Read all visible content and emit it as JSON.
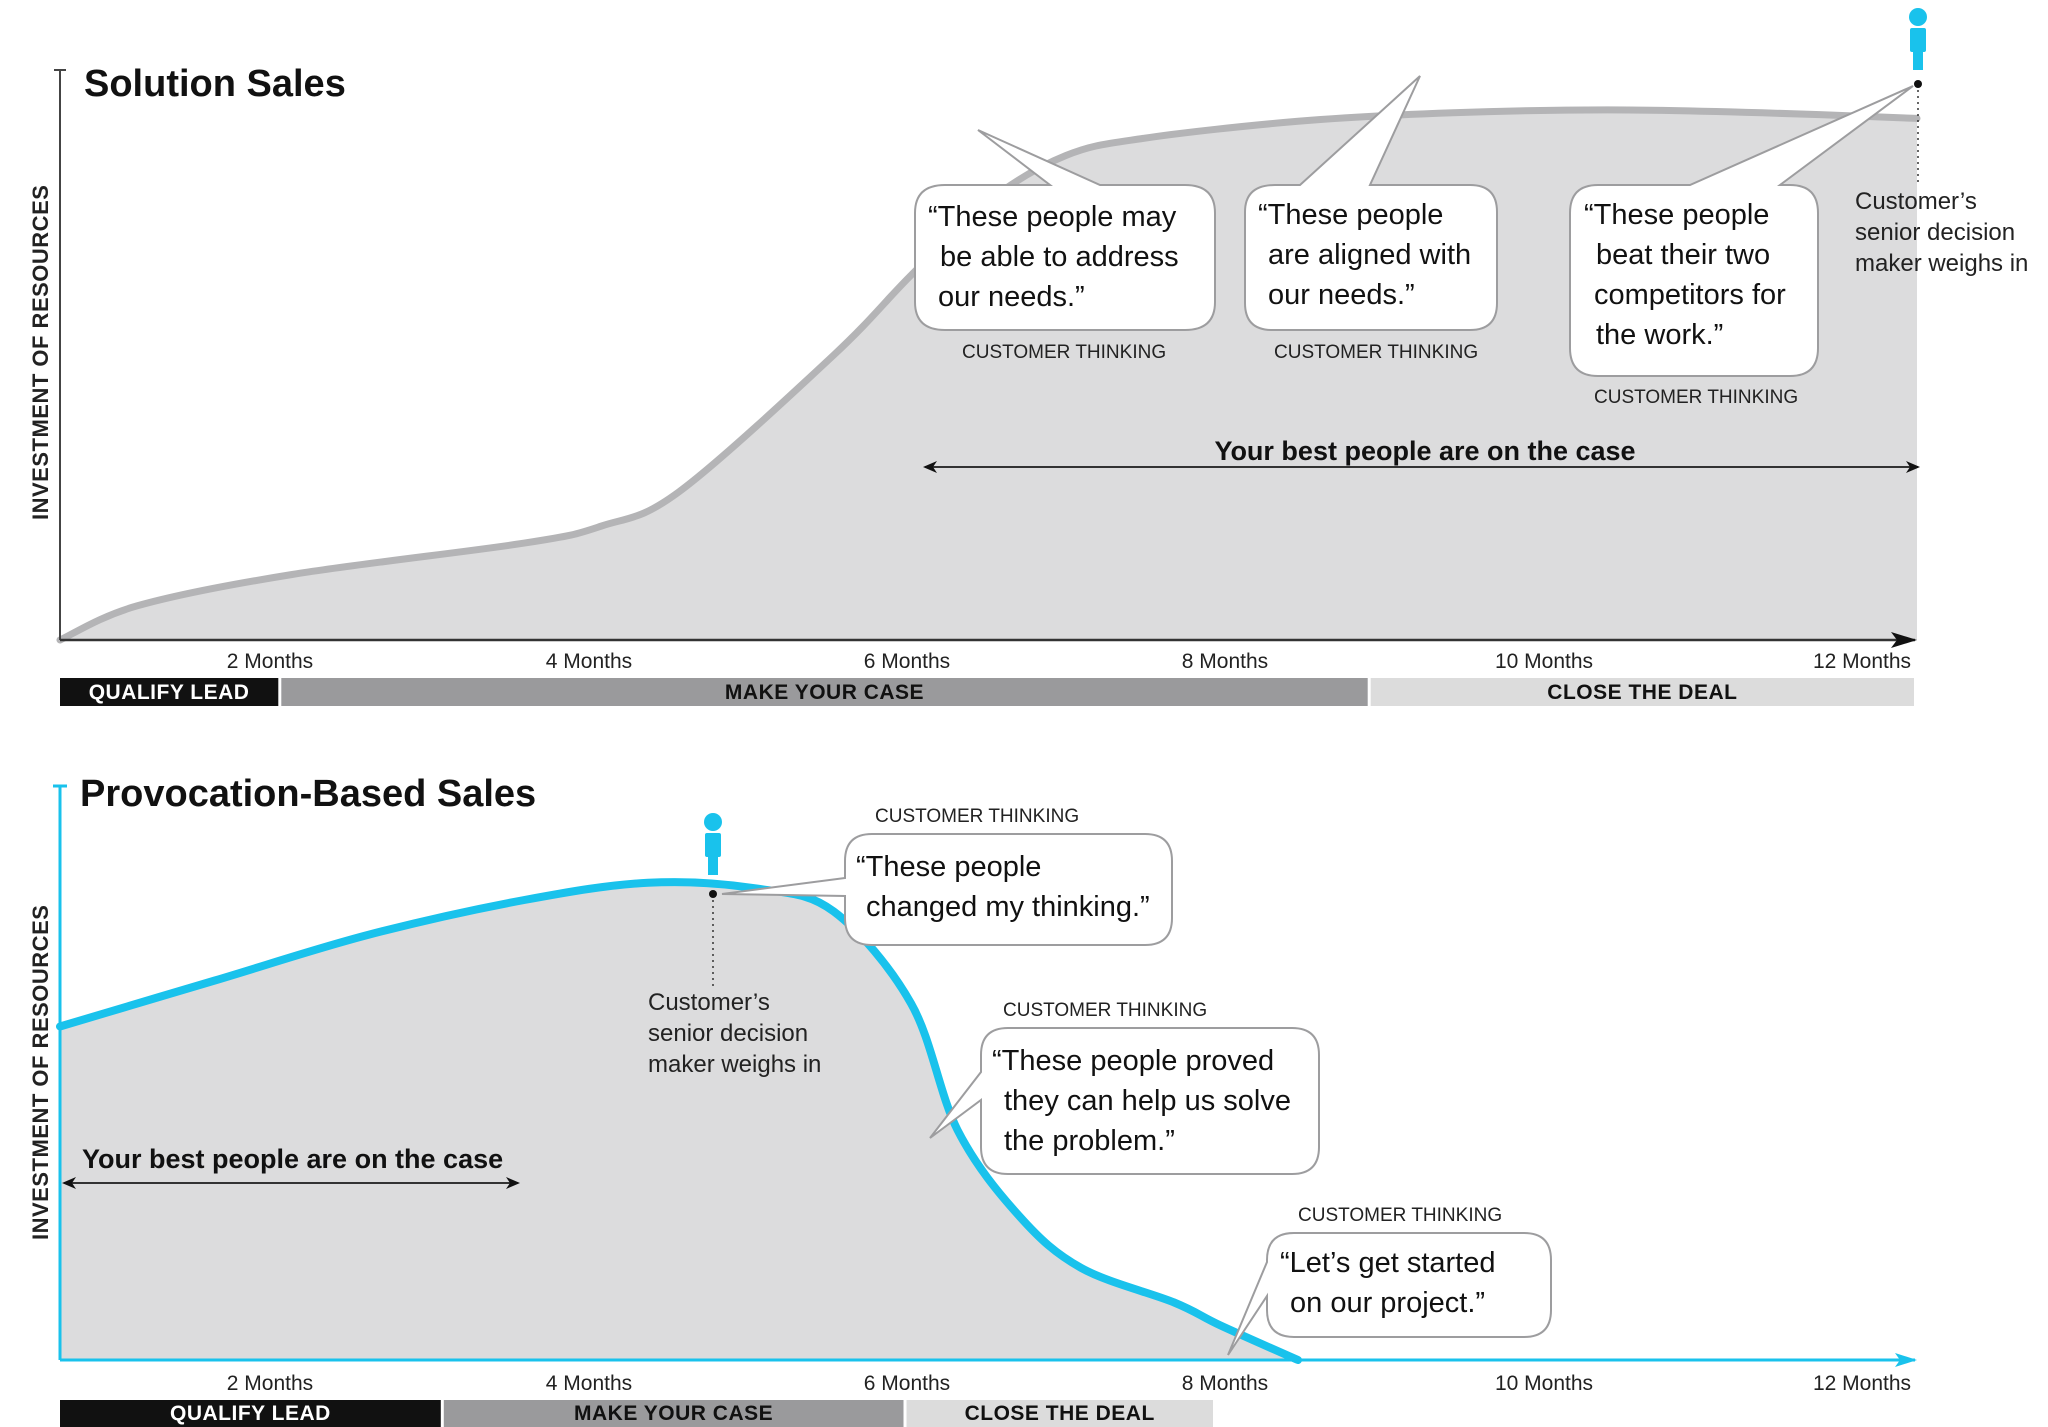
{
  "colors": {
    "area_fill": "#dcdcdd",
    "solution_line": "#b4b4b6",
    "provocation_line": "#19c2ec",
    "phase_qualify": "#111111",
    "phase_make": "#9a9a9c",
    "phase_close": "#dcdcdc",
    "person_icon": "#19c2ec"
  },
  "chart_data": [
    {
      "id": "solution",
      "type": "area",
      "title": "Solution Sales",
      "ylabel": "INVESTMENT OF RESOURCES",
      "xlabel": "",
      "xlim": [
        0,
        12
      ],
      "ylim": [
        0,
        100
      ],
      "x_ticks": [
        {
          "value": 2,
          "label": "2 Months"
        },
        {
          "value": 4,
          "label": "4 Months"
        },
        {
          "value": 6,
          "label": "6 Months"
        },
        {
          "value": 8,
          "label": "8 Months"
        },
        {
          "value": 10,
          "label": "10 Months"
        },
        {
          "value": 12,
          "label": "12 Months"
        }
      ],
      "curve": [
        [
          0,
          0
        ],
        [
          0.5,
          6
        ],
        [
          1.5,
          11.5
        ],
        [
          3,
          17
        ],
        [
          3.5,
          20
        ],
        [
          4,
          26
        ],
        [
          5,
          50
        ],
        [
          5.5,
          64
        ],
        [
          6,
          77
        ],
        [
          6.5,
          85
        ],
        [
          7,
          88
        ],
        [
          8,
          91
        ],
        [
          9,
          92.5
        ],
        [
          10,
          93
        ],
        [
          11,
          92.5
        ],
        [
          12,
          91.5
        ]
      ],
      "phases": [
        {
          "label": "QUALIFY LEAD",
          "start": 0,
          "end": 1.43
        },
        {
          "label": "MAKE YOUR CASE",
          "start": 1.43,
          "end": 8.47
        },
        {
          "label": "CLOSE THE DEAL",
          "start": 8.47,
          "end": 12
        }
      ],
      "callouts": [
        {
          "text": "“These people may be able to address our needs.”",
          "lines": [
            "“These people may",
            "be able to address",
            "our needs.”"
          ],
          "caption": "CUSTOMER THINKING"
        },
        {
          "text": "“These people are aligned with our needs.”",
          "lines": [
            "“These people",
            "are aligned with",
            "our needs.”"
          ],
          "caption": "CUSTOMER THINKING"
        },
        {
          "text": "“These people beat their two competitors for the work.”",
          "lines": [
            "“These people",
            "beat their two",
            "competitors for",
            "the work.”"
          ],
          "caption": "CUSTOMER THINKING"
        }
      ],
      "decision_maker_note": [
        "Customer’s",
        "senior decision",
        "maker weighs in"
      ],
      "decision_maker_x": 12,
      "best_people_label": "Your best people are on the case",
      "best_people_range": [
        5.5,
        12
      ]
    },
    {
      "id": "provocation",
      "type": "area",
      "title": "Provocation-Based Sales",
      "ylabel": "INVESTMENT OF RESOURCES",
      "xlabel": "",
      "xlim": [
        0,
        12
      ],
      "ylim": [
        0,
        100
      ],
      "x_ticks": [
        {
          "value": 2,
          "label": "2 Months"
        },
        {
          "value": 4,
          "label": "4 Months"
        },
        {
          "value": 6,
          "label": "6 Months"
        },
        {
          "value": 8,
          "label": "8 Months"
        },
        {
          "value": 10,
          "label": "10 Months"
        },
        {
          "value": 12,
          "label": "12 Months"
        }
      ],
      "curve": [
        [
          0,
          58
        ],
        [
          1,
          66
        ],
        [
          2,
          74
        ],
        [
          3,
          80
        ],
        [
          3.8,
          83
        ],
        [
          4.5,
          82
        ],
        [
          5,
          78
        ],
        [
          5.5,
          62
        ],
        [
          5.8,
          40
        ],
        [
          6.2,
          25
        ],
        [
          6.6,
          16
        ],
        [
          7.2,
          10
        ],
        [
          7.5,
          6
        ],
        [
          8,
          0
        ]
      ],
      "phases": [
        {
          "label": "QUALIFY LEAD",
          "start": 0,
          "end": 2.48
        },
        {
          "label": "MAKE YOUR CASE",
          "start": 2.48,
          "end": 5.47
        },
        {
          "label": "CLOSE THE DEAL",
          "start": 5.47,
          "end": 7.47
        }
      ],
      "callouts": [
        {
          "text": "“These people changed my thinking.”",
          "lines": [
            "“These people",
            "changed my thinking.”"
          ],
          "caption": "CUSTOMER THINKING"
        },
        {
          "text": "“These people proved they can help us solve the problem.”",
          "lines": [
            "“These people proved",
            "they can help us solve",
            "the problem.”"
          ],
          "caption": "CUSTOMER THINKING"
        },
        {
          "text": "“Let’s get started on our project.”",
          "lines": [
            "“Let’s get started",
            "on our project.”"
          ],
          "caption": "CUSTOMER THINKING"
        }
      ],
      "decision_maker_note": [
        "Customer’s",
        "senior decision",
        "maker weighs in"
      ],
      "decision_maker_x": 4.2,
      "best_people_label": "Your best people are on the case",
      "best_people_range": [
        0,
        2.9
      ]
    }
  ]
}
